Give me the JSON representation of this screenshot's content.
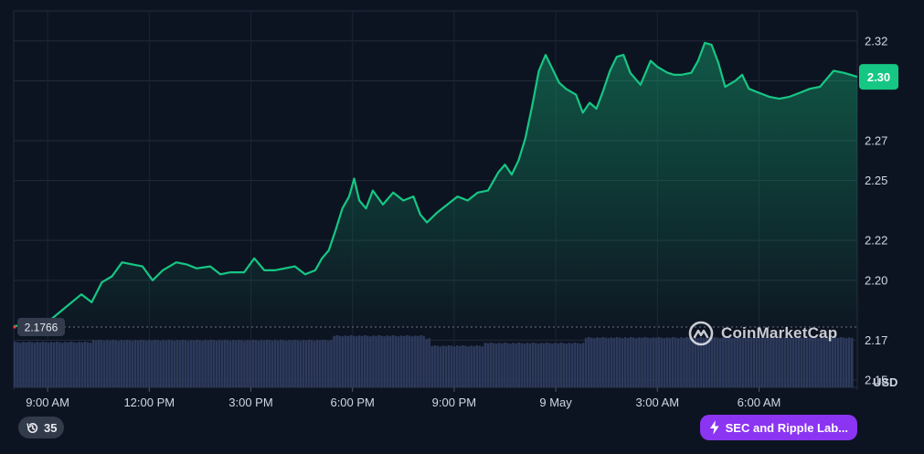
{
  "chart_data": {
    "type": "area",
    "ylim": [
      2.145,
      2.335
    ],
    "y_ticks": [
      "2.32",
      "2.30",
      "2.27",
      "2.25",
      "2.22",
      "2.20",
      "2.17",
      "2.15"
    ],
    "y_unit": "USD",
    "x_ticks": [
      "9:00 AM",
      "12:00 PM",
      "3:00 PM",
      "6:00 PM",
      "9:00 PM",
      "9 May",
      "3:00 AM",
      "6:00 AM"
    ],
    "x_start_hour": 8,
    "x_end_hour": 32.9,
    "reference_price": "2.1766",
    "reference_value": 2.1766,
    "current_price": "2.30",
    "current_value": 2.302,
    "grid": true,
    "colors": {
      "line": "#16c784",
      "area_top": "#16c784",
      "volume": "#2d3a5c",
      "current_badge": "#16c784",
      "reference_badge": "#333c4c"
    },
    "series": [
      {
        "values": [
          [
            8.0,
            2.177
          ],
          [
            8.5,
            2.178
          ],
          [
            9.0,
            2.179
          ],
          [
            9.5,
            2.186
          ],
          [
            10.0,
            2.193
          ],
          [
            10.3,
            2.189
          ],
          [
            10.6,
            2.199
          ],
          [
            10.9,
            2.202
          ],
          [
            11.2,
            2.209
          ],
          [
            11.5,
            2.208
          ],
          [
            11.8,
            2.207
          ],
          [
            12.1,
            2.2
          ],
          [
            12.4,
            2.205
          ],
          [
            12.8,
            2.209
          ],
          [
            13.1,
            2.208
          ],
          [
            13.4,
            2.206
          ],
          [
            13.8,
            2.207
          ],
          [
            14.1,
            2.203
          ],
          [
            14.4,
            2.204
          ],
          [
            14.8,
            2.204
          ],
          [
            15.1,
            2.211
          ],
          [
            15.4,
            2.205
          ],
          [
            15.7,
            2.205
          ],
          [
            16.0,
            2.206
          ],
          [
            16.3,
            2.207
          ],
          [
            16.6,
            2.203
          ],
          [
            16.9,
            2.205
          ],
          [
            17.1,
            2.211
          ],
          [
            17.3,
            2.215
          ],
          [
            17.5,
            2.225
          ],
          [
            17.7,
            2.236
          ],
          [
            17.9,
            2.242
          ],
          [
            18.05,
            2.251
          ],
          [
            18.2,
            2.24
          ],
          [
            18.4,
            2.236
          ],
          [
            18.6,
            2.245
          ],
          [
            18.9,
            2.238
          ],
          [
            19.2,
            2.244
          ],
          [
            19.5,
            2.24
          ],
          [
            19.8,
            2.242
          ],
          [
            20.0,
            2.233
          ],
          [
            20.2,
            2.229
          ],
          [
            20.5,
            2.234
          ],
          [
            20.8,
            2.238
          ],
          [
            21.1,
            2.242
          ],
          [
            21.4,
            2.24
          ],
          [
            21.7,
            2.244
          ],
          [
            22.0,
            2.245
          ],
          [
            22.3,
            2.254
          ],
          [
            22.5,
            2.258
          ],
          [
            22.7,
            2.253
          ],
          [
            22.9,
            2.26
          ],
          [
            23.1,
            2.271
          ],
          [
            23.3,
            2.287
          ],
          [
            23.5,
            2.305
          ],
          [
            23.7,
            2.313
          ],
          [
            23.9,
            2.306
          ],
          [
            24.1,
            2.299
          ],
          [
            24.3,
            2.296
          ],
          [
            24.6,
            2.293
          ],
          [
            24.8,
            2.284
          ],
          [
            25.0,
            2.289
          ],
          [
            25.2,
            2.286
          ],
          [
            25.4,
            2.295
          ],
          [
            25.6,
            2.305
          ],
          [
            25.8,
            2.312
          ],
          [
            26.0,
            2.313
          ],
          [
            26.2,
            2.304
          ],
          [
            26.5,
            2.298
          ],
          [
            26.8,
            2.31
          ],
          [
            27.0,
            2.307
          ],
          [
            27.3,
            2.304
          ],
          [
            27.5,
            2.303
          ],
          [
            27.7,
            2.303
          ],
          [
            28.0,
            2.304
          ],
          [
            28.2,
            2.31
          ],
          [
            28.4,
            2.319
          ],
          [
            28.6,
            2.318
          ],
          [
            28.8,
            2.309
          ],
          [
            29.0,
            2.297
          ],
          [
            29.3,
            2.3
          ],
          [
            29.5,
            2.303
          ],
          [
            29.7,
            2.296
          ],
          [
            30.0,
            2.294
          ],
          [
            30.3,
            2.292
          ],
          [
            30.6,
            2.291
          ],
          [
            30.9,
            2.292
          ],
          [
            31.2,
            2.294
          ],
          [
            31.5,
            2.296
          ],
          [
            31.8,
            2.297
          ],
          [
            32.2,
            2.305
          ],
          [
            32.5,
            2.304
          ],
          [
            32.9,
            2.302
          ]
        ]
      }
    ]
  },
  "logo": {
    "text": "CoinMarketCap"
  },
  "currency_label": "USD",
  "history_button": {
    "icon": "history-icon",
    "count": "35"
  },
  "news_button": {
    "icon": "lightning-icon",
    "label": "SEC and Ripple Lab..."
  }
}
